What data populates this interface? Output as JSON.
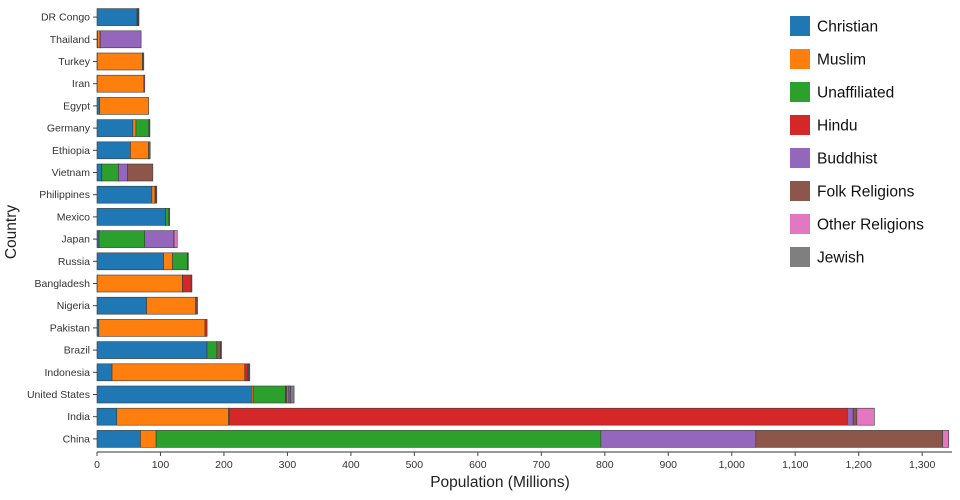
{
  "chart_data": {
    "type": "bar",
    "orientation": "horizontal",
    "stacked": true,
    "title": "",
    "xlabel": "Population (Millions)",
    "ylabel": "Country",
    "values_unit": "millions",
    "xlim": [
      0,
      1347
    ],
    "xticks": [
      0,
      100,
      200,
      300,
      400,
      500,
      600,
      700,
      800,
      900,
      1000,
      1100,
      1200,
      1300
    ],
    "xtick_labels": [
      "0",
      "100",
      "200",
      "300",
      "400",
      "500",
      "600",
      "700",
      "800",
      "900",
      "1,000",
      "1,100",
      "1,200",
      "1,300"
    ],
    "category_order": "top-to-bottom",
    "categories": [
      "DR Congo",
      "Thailand",
      "Turkey",
      "Iran",
      "Egypt",
      "Germany",
      "Ethiopia",
      "Vietnam",
      "Philippines",
      "Mexico",
      "Japan",
      "Russia",
      "Bangladesh",
      "Nigeria",
      "Pakistan",
      "Brazil",
      "Indonesia",
      "United States",
      "India",
      "China"
    ],
    "series": [
      {
        "name": "Christian",
        "color": "#1f77b4",
        "values": [
          63.2,
          0.9,
          0.3,
          0.3,
          4.3,
          56.5,
          52.6,
          7.3,
          86.4,
          107.8,
          2.9,
          104.8,
          0.3,
          78.1,
          2.8,
          173.3,
          23.7,
          243.1,
          31.1,
          68.4
        ]
      },
      {
        "name": "Muslim",
        "color": "#ff7f0e",
        "values": [
          1.0,
          3.9,
          71.3,
          73.6,
          77.0,
          4.8,
          28.7,
          0.2,
          5.1,
          0.1,
          0.2,
          14.3,
          134.4,
          77.3,
          167.4,
          0.0,
          209.1,
          2.8,
          176.2,
          24.7
        ]
      },
      {
        "name": "Unaffiliated",
        "color": "#2ca02c",
        "values": [
          0.7,
          0.2,
          0.9,
          0.1,
          0.0,
          20.4,
          0.3,
          26.2,
          0.1,
          5.3,
          72.1,
          23.2,
          0.1,
          0.7,
          0.0,
          15.4,
          0.2,
          51.0,
          0.9,
          700.7
        ]
      },
      {
        "name": "Hindu",
        "color": "#d62728",
        "values": [
          0.0,
          0.1,
          0.0,
          0.0,
          0.0,
          0.0,
          0.0,
          0.1,
          0.0,
          0.0,
          0.0,
          0.0,
          13.5,
          0.0,
          3.3,
          0.0,
          4.1,
          1.8,
          973.8,
          0.0
        ]
      },
      {
        "name": "Buddhist",
        "color": "#9467bd",
        "values": [
          0.0,
          64.4,
          0.0,
          0.0,
          0.0,
          0.2,
          0.0,
          14.4,
          0.0,
          0.0,
          45.8,
          0.1,
          0.7,
          0.0,
          0.0,
          0.3,
          1.7,
          3.6,
          9.3,
          244.1
        ]
      },
      {
        "name": "Folk Religions",
        "color": "#8c564b",
        "values": [
          1.2,
          0.0,
          0.0,
          0.0,
          0.0,
          0.0,
          2.2,
          39.8,
          1.4,
          0.1,
          0.5,
          0.3,
          0.0,
          2.3,
          0.0,
          5.5,
          0.7,
          0.6,
          5.8,
          294.3
        ]
      },
      {
        "name": "Other Religions",
        "color": "#e377c2",
        "values": [
          0.0,
          0.0,
          0.1,
          0.1,
          0.0,
          0.1,
          0.0,
          0.0,
          0.2,
          0.0,
          4.9,
          0.0,
          0.0,
          0.0,
          0.0,
          0.4,
          0.3,
          1.9,
          27.6,
          9.6
        ]
      },
      {
        "name": "Jewish",
        "color": "#7f7f7f",
        "values": [
          0.0,
          0.0,
          0.0,
          0.0,
          0.0,
          0.2,
          0.0,
          0.0,
          0.0,
          0.1,
          0.0,
          0.3,
          0.0,
          0.0,
          0.0,
          0.1,
          0.0,
          5.7,
          0.0,
          0.0
        ]
      }
    ],
    "legend": {
      "position": "top-right",
      "entries": [
        "Christian",
        "Muslim",
        "Unaffiliated",
        "Hindu",
        "Buddhist",
        "Folk Religions",
        "Other Religions",
        "Jewish"
      ]
    },
    "grid": false,
    "background_color": "#ffffff",
    "bar_border_color": "#3b3b3b"
  }
}
